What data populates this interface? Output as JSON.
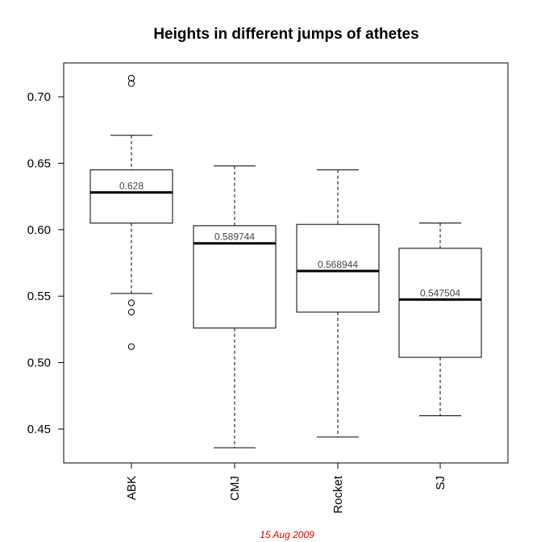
{
  "chart_data": {
    "type": "boxplot",
    "title": "Heights in different jumps of athetes",
    "xlabel": "",
    "ylabel": "",
    "ylim": [
      0.425,
      0.725
    ],
    "y_ticks": [
      0.45,
      0.5,
      0.55,
      0.6,
      0.65,
      0.7
    ],
    "y_tick_labels": [
      "0.45",
      "0.50",
      "0.55",
      "0.60",
      "0.65",
      "0.70"
    ],
    "categories": [
      "ABK",
      "CMJ",
      "Rocket",
      "SJ"
    ],
    "boxes": [
      {
        "name": "ABK",
        "whisker_low": 0.552,
        "q1": 0.605,
        "median": 0.628,
        "q3": 0.645,
        "whisker_high": 0.671,
        "outliers": [
          0.714,
          0.71,
          0.545,
          0.538,
          0.512
        ],
        "median_label": "0.628"
      },
      {
        "name": "CMJ",
        "whisker_low": 0.436,
        "q1": 0.526,
        "median": 0.589744,
        "q3": 0.603,
        "whisker_high": 0.648,
        "outliers": [],
        "median_label": "0.589744"
      },
      {
        "name": "Rocket",
        "whisker_low": 0.444,
        "q1": 0.538,
        "median": 0.568944,
        "q3": 0.604,
        "whisker_high": 0.645,
        "outliers": [],
        "median_label": "0.568944"
      },
      {
        "name": "SJ",
        "whisker_low": 0.46,
        "q1": 0.504,
        "median": 0.547504,
        "q3": 0.586,
        "whisker_high": 0.605,
        "outliers": [],
        "median_label": "0.547504"
      }
    ],
    "grid": false,
    "legend": "none"
  },
  "footer": {
    "date": "15 Aug 2009",
    "color": "#e00000"
  }
}
